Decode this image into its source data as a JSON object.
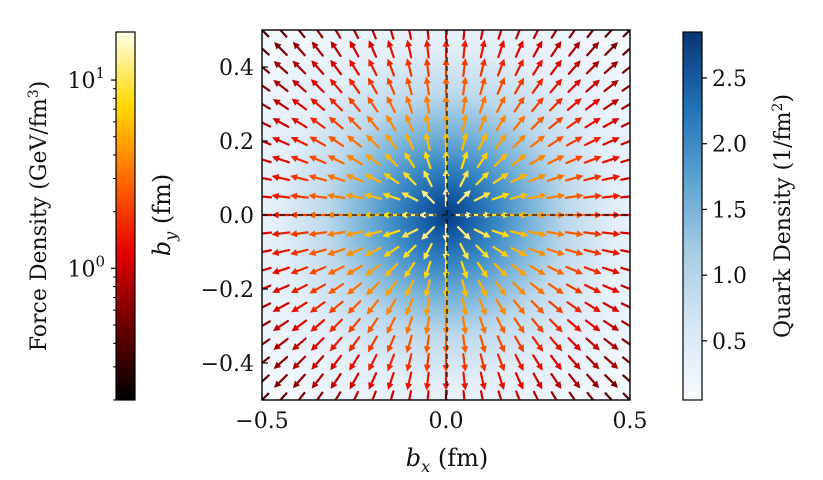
{
  "chart_data": {
    "type": "quiver",
    "xlabel": "b_x (fm)",
    "ylabel": "b_y (fm)",
    "xlim": [
      -0.5,
      0.5
    ],
    "ylim": [
      -0.5,
      0.5
    ],
    "x_ticks": [
      -0.5,
      0.0,
      0.5
    ],
    "x_tick_labels": [
      "−0.5",
      "0.0",
      "0.5"
    ],
    "y_ticks": [
      -0.4,
      -0.2,
      0.0,
      0.2,
      0.4
    ],
    "y_tick_labels": [
      "−0.4",
      "−0.2",
      "0.0",
      "0.2",
      "0.4"
    ],
    "guide_lines": {
      "x": 0.0,
      "y": 0.0,
      "style": "dashed"
    },
    "quiver": {
      "grid_x": [
        -0.5,
        -0.45,
        -0.4,
        -0.35,
        -0.3,
        -0.25,
        -0.2,
        -0.15,
        -0.1,
        -0.05,
        0.0,
        0.05,
        0.1,
        0.15,
        0.2,
        0.25,
        0.3,
        0.35,
        0.4,
        0.45,
        0.5
      ],
      "grid_y": [
        -0.5,
        -0.45,
        -0.4,
        -0.35,
        -0.3,
        -0.25,
        -0.2,
        -0.15,
        -0.1,
        -0.05,
        0.0,
        0.05,
        0.1,
        0.15,
        0.2,
        0.25,
        0.3,
        0.35,
        0.4,
        0.45,
        0.5
      ],
      "direction": "radially outward from origin",
      "color_quantity": "force density"
    },
    "background_quantity": "quark density",
    "force_colorbar": {
      "label": "Force Density (GeV/fm³)",
      "label_main": "Force Density (GeV/fm",
      "label_sup": "3",
      "label_end": ")",
      "scale": "log",
      "range": [
        0.2,
        18
      ],
      "ticks": [
        1,
        10
      ],
      "tick_labels": [
        {
          "base": "10",
          "exp": "0"
        },
        {
          "base": "10",
          "exp": "1"
        }
      ],
      "colormap": "hot"
    },
    "density_colorbar": {
      "label": "Quark Density (1/fm²)",
      "label_main": "Quark Density (1/fm",
      "label_sup": "2",
      "label_end": ")",
      "range": [
        0.05,
        2.85
      ],
      "ticks": [
        0.5,
        1.0,
        1.5,
        2.0,
        2.5
      ],
      "tick_labels": [
        "0.5",
        "1.0",
        "1.5",
        "2.0",
        "2.5"
      ],
      "colormap": "Blues"
    }
  }
}
